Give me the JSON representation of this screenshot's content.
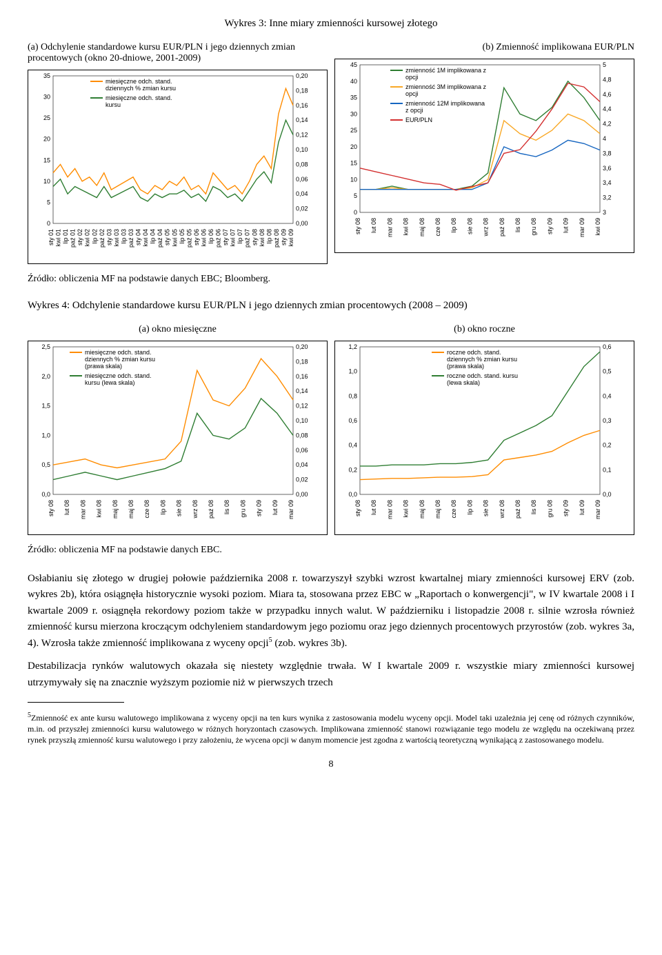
{
  "figure3": {
    "title": "Wykres 3: Inne miary zmienności kursowej złotego",
    "panelA": {
      "caption": "(a) Odchylenie standardowe kursu EUR/PLN i jego dziennych zmian procentowych (okno 20-dniowe, 2001-2009)",
      "type": "line",
      "left_axis": {
        "min": 0,
        "max": 35,
        "step": 5
      },
      "right_axis": {
        "min": 0.0,
        "max": 0.2,
        "step": 0.02,
        "labels": [
          "0,00",
          "0,02",
          "0,04",
          "0,06",
          "0,08",
          "0,10",
          "0,12",
          "0,14",
          "0,16",
          "0,18",
          "0,20"
        ]
      },
      "x_labels": [
        "sty 01",
        "kwi 01",
        "lip 01",
        "paź 01",
        "sty 02",
        "kwi 02",
        "lip 02",
        "paź 02",
        "sty 03",
        "kwi 03",
        "lip 03",
        "paź 03",
        "sty 04",
        "kwi 04",
        "lip 04",
        "paź 04",
        "sty 05",
        "kwi 05",
        "lip 05",
        "paź 05",
        "sty 06",
        "kwi 06",
        "lip 06",
        "paź 06",
        "sty 07",
        "kwi 07",
        "lip 07",
        "paź 07",
        "sty 08",
        "kwi 08",
        "lip 08",
        "paź 08",
        "sty 09",
        "kwi 09"
      ],
      "legend": [
        {
          "label": "miesięczne odch. stand. dziennych % zmian kursu",
          "color": "#ff8c00"
        },
        {
          "label": "miesięczne odch. stand. kursu",
          "color": "#2e7d32"
        }
      ],
      "series": {
        "orange": [
          12,
          14,
          11,
          13,
          10,
          11,
          9,
          12,
          8,
          9,
          10,
          11,
          8,
          7,
          9,
          8,
          10,
          9,
          11,
          8,
          9,
          7,
          12,
          10,
          8,
          9,
          7,
          10,
          14,
          16,
          13,
          26,
          32,
          28
        ],
        "green": [
          0.05,
          0.06,
          0.04,
          0.05,
          0.045,
          0.04,
          0.035,
          0.05,
          0.035,
          0.04,
          0.045,
          0.05,
          0.035,
          0.03,
          0.04,
          0.035,
          0.04,
          0.04,
          0.045,
          0.035,
          0.04,
          0.03,
          0.05,
          0.045,
          0.035,
          0.04,
          0.03,
          0.045,
          0.06,
          0.07,
          0.055,
          0.11,
          0.14,
          0.12
        ]
      }
    },
    "panelB": {
      "caption": "(b) Zmienność implikowana EUR/PLN",
      "type": "line",
      "left_axis": {
        "min": 0,
        "max": 45,
        "step": 5
      },
      "right_axis": {
        "min": 3.0,
        "max": 5.0,
        "step": 0.2,
        "labels": [
          "3",
          "3,2",
          "3,4",
          "3,6",
          "3,8",
          "4",
          "4,2",
          "4,4",
          "4,6",
          "4,8",
          "5"
        ]
      },
      "x_labels": [
        "sty 08",
        "lut 08",
        "mar 08",
        "kwi 08",
        "maj 08",
        "cze 08",
        "lip 08",
        "sie 08",
        "wrz 08",
        "paź 08",
        "lis 08",
        "gru 08",
        "sty 09",
        "lut 09",
        "mar 09",
        "kwi 09"
      ],
      "legend": [
        {
          "label": "zmienność 1M implikowana z opcji",
          "color": "#2e7d32"
        },
        {
          "label": "zmienność 3M implikowana z opcji",
          "color": "#f9a825"
        },
        {
          "label": "zmienność 12M implikowana z opcji",
          "color": "#1565c0"
        },
        {
          "label": "EUR/PLN",
          "color": "#d32f2f"
        }
      ],
      "series": {
        "green": [
          7,
          7,
          8,
          7,
          7,
          7,
          7,
          8,
          12,
          38,
          30,
          28,
          32,
          40,
          35,
          28
        ],
        "yellow": [
          7,
          7,
          7.5,
          7,
          7,
          7,
          7,
          7.5,
          10,
          28,
          24,
          22,
          25,
          30,
          28,
          24
        ],
        "blue": [
          7,
          7,
          7,
          7,
          7,
          7,
          7,
          7,
          9,
          20,
          18,
          17,
          19,
          22,
          21,
          19
        ],
        "red": [
          3.6,
          3.55,
          3.5,
          3.45,
          3.4,
          3.38,
          3.3,
          3.35,
          3.4,
          3.8,
          3.85,
          4.1,
          4.4,
          4.75,
          4.7,
          4.5
        ]
      }
    },
    "source": "Źródło: obliczenia MF na podstawie danych EBC; Bloomberg."
  },
  "figure4": {
    "title": "Wykres 4: Odchylenie standardowe kursu EUR/PLN i jego dziennych zmian procentowych (2008 – 2009)",
    "panelA": {
      "caption": "(a) okno miesięczne",
      "type": "line",
      "left_axis": {
        "min": 0.0,
        "max": 2.5,
        "step": 0.5,
        "labels": [
          "0,0",
          "0,5",
          "1,0",
          "1,5",
          "2,0",
          "2,5"
        ]
      },
      "right_axis": {
        "min": 0.0,
        "max": 0.2,
        "step": 0.02,
        "labels": [
          "0,00",
          "0,02",
          "0,04",
          "0,06",
          "0,08",
          "0,10",
          "0,12",
          "0,14",
          "0,16",
          "0,18",
          "0,20"
        ]
      },
      "x_labels": [
        "sty 08",
        "lut 08",
        "mar 08",
        "kwi 08",
        "maj 08",
        "maj 08",
        "cze 08",
        "lip 08",
        "sie 08",
        "wrz 08",
        "paź 08",
        "lis 08",
        "gru 08",
        "sty 09",
        "lut 09",
        "mar 09"
      ],
      "legend": [
        {
          "label": "miesięczne odch. stand. dziennych % zmian kursu (prawa skala)",
          "color": "#ff8c00"
        },
        {
          "label": "miesięczne odch. stand. kursu (lewa skala)",
          "color": "#2e7d32"
        }
      ],
      "series": {
        "orange": [
          0.5,
          0.55,
          0.6,
          0.5,
          0.45,
          0.5,
          0.55,
          0.6,
          0.9,
          2.1,
          1.6,
          1.5,
          1.8,
          2.3,
          2.0,
          1.6
        ],
        "green": [
          0.02,
          0.025,
          0.03,
          0.025,
          0.02,
          0.025,
          0.03,
          0.035,
          0.045,
          0.11,
          0.08,
          0.075,
          0.09,
          0.13,
          0.11,
          0.08
        ]
      }
    },
    "panelB": {
      "caption": "(b) okno roczne",
      "type": "line",
      "left_axis": {
        "min": 0.0,
        "max": 1.2,
        "step": 0.2,
        "labels": [
          "0,0",
          "0,2",
          "0,4",
          "0,6",
          "0,8",
          "1,0",
          "1,2"
        ]
      },
      "right_axis": {
        "min": 0.0,
        "max": 0.6,
        "step": 0.1,
        "labels": [
          "0,0",
          "0,1",
          "0,2",
          "0,3",
          "0,4",
          "0,5",
          "0,6"
        ]
      },
      "x_labels": [
        "sty 08",
        "lut 08",
        "mar 08",
        "kwi 08",
        "maj 08",
        "maj 08",
        "cze 08",
        "lip 08",
        "sie 08",
        "wrz 08",
        "paź 08",
        "lis 08",
        "gru 08",
        "sty 09",
        "lut 09",
        "mar 09"
      ],
      "legend": [
        {
          "label": "roczne odch. stand. dziennych % zmian kursu (prawa skala)",
          "color": "#ff8c00"
        },
        {
          "label": "roczne odch. stand. kursu (lewa skala)",
          "color": "#2e7d32"
        }
      ],
      "series": {
        "orange": [
          0.12,
          0.125,
          0.13,
          0.13,
          0.135,
          0.14,
          0.14,
          0.145,
          0.16,
          0.28,
          0.3,
          0.32,
          0.35,
          0.42,
          0.48,
          0.52
        ],
        "green": [
          0.115,
          0.115,
          0.12,
          0.12,
          0.12,
          0.125,
          0.125,
          0.13,
          0.14,
          0.22,
          0.25,
          0.28,
          0.32,
          0.42,
          0.52,
          0.58
        ]
      }
    },
    "source": "Źródło: obliczenia MF na podstawie danych EBC."
  },
  "body": {
    "p1": "Osłabianiu się złotego w drugiej połowie października 2008 r. towarzyszył szybki wzrost kwartalnej miary zmienności kursowej ERV (zob. wykres 2b), która osiągnęła historycznie wysoki poziom. Miara ta, stosowana przez EBC w „Raportach o konwergencji\", w IV kwartale 2008 i I kwartale 2009 r. osiągnęła rekordowy poziom także w przypadku innych walut. W październiku i listopadzie 2008 r. silnie wzrosła również zmienność kursu mierzona kroczącym odchyleniem standardowym jego poziomu oraz jego dziennych procentowych przyrostów (zob. wykres 3a, 4). Wzrosła także zmienność implikowana z wyceny opcji",
    "p1_sup": "5",
    "p1_tail": " (zob. wykres 3b).",
    "p2": "Destabilizacja rynków walutowych okazała się niestety względnie trwała. W I kwartale 2009 r. wszystkie miary zmienności kursowej utrzymywały się na znacznie wyższym poziomie niż w pierwszych trzech"
  },
  "footnote": {
    "num": "5",
    "text": "Zmienność ex ante kursu walutowego implikowana z wyceny opcji na ten kurs wynika z zastosowania modelu wyceny opcji. Model taki uzależnia jej cenę od różnych czynników, m.in. od przyszłej zmienności kursu walutowego w różnych horyzontach czasowych. Implikowana zmienność stanowi rozwiązanie tego modelu ze względu na oczekiwaną przez rynek przyszłą zmienność kursu walutowego i przy założeniu, że wycena opcji w danym momencie jest zgodna z wartością teoretyczną wynikającą z zastosowanego modelu."
  },
  "page": "8"
}
